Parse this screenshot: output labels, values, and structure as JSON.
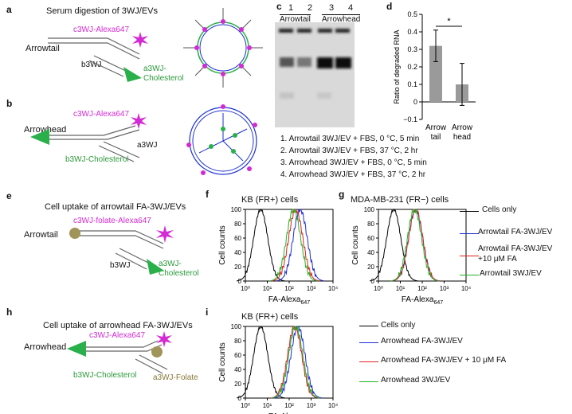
{
  "panels": {
    "a": {
      "label": "a",
      "title": "Serum digestion of 3WJ/EVs",
      "name": "Arrowtail",
      "top_strand": "c3WJ-Alexa647",
      "b_strand": "b3WJ",
      "a_strand": "a3WJ-",
      "a_suffix": "Cholesterol"
    },
    "b": {
      "label": "b",
      "name": "Arrowhead",
      "top_strand": "c3WJ-Alexa647",
      "b_strand": "b3WJ-Cholesterol",
      "a_strand": "a3WJ"
    },
    "c": {
      "label": "c",
      "lanes": [
        "1",
        "2",
        "3",
        "4"
      ],
      "group1": "Arrowtail",
      "group2": "Arrowhead",
      "legend": [
        "1. Arrowtail 3WJ/EV + FBS, 0 °C, 5 min",
        "2. Arrowtail 3WJ/EV + FBS, 37 °C, 2 hr",
        "3. Arrowhead 3WJ/EV + FBS, 0 °C, 5 min",
        "4. Arrowhead 3WJ/EV + FBS, 37 °C, 2 hr"
      ]
    },
    "d": {
      "label": "d",
      "star": "*"
    },
    "e": {
      "label": "e",
      "title": "Cell uptake of arrowtail FA-3WJ/EVs",
      "name": "Arrowtail",
      "top_strand": "c3WJ-folate-Alexa647",
      "b_strand": "b3WJ",
      "a_strand": "a3WJ-",
      "a_suffix": "Cholesterol"
    },
    "f": {
      "label": "f",
      "title": "KB (FR+) cells"
    },
    "g": {
      "label": "g",
      "title": "MDA-MB-231 (FR−) cells"
    },
    "h": {
      "label": "h",
      "title": "Cell uptake of arrowhead FA-3WJ/EVs",
      "name": "Arrowhead",
      "top_strand": "c3WJ-Alexa647",
      "b_strand": "b3WJ-Cholesterol",
      "a_strand": "a3WJ-Folate"
    },
    "i": {
      "label": "i",
      "title": "KB (FR+) cells"
    }
  },
  "legend_fg": [
    "Cells only",
    "Arrowtail FA-3WJ/EV",
    "Arrowtail FA-3WJ/EV",
    "+10 μM FA",
    "Arrowtail 3WJ/EV"
  ],
  "legend_i": [
    "Cells only",
    "Arrowhead FA-3WJ/EV",
    "Arrowhead FA-3WJ/EV + 10 μM FA",
    "Arrowhead 3WJ/EV"
  ],
  "flow_axes": {
    "ylabel": "Cell counts",
    "xlabel": "FA-Alexa647",
    "yticks": [
      "0",
      "20",
      "40",
      "60",
      "80",
      "100"
    ],
    "xticks": [
      "10⁰",
      "10¹",
      "10²",
      "10³",
      "10⁴"
    ]
  },
  "colors": {
    "black": "#000000",
    "blue": "#1a2fd0",
    "red": "#e02020",
    "green": "#22b222",
    "magenta": "#d42ad4",
    "cholesterol": "#2ab04a",
    "folate": "#a09458"
  },
  "chart_data": [
    {
      "panel": "d",
      "type": "bar",
      "categories": [
        "Arrow tail",
        "Arrow head"
      ],
      "values": [
        0.32,
        0.1
      ],
      "errors": [
        0.09,
        0.12
      ],
      "ylabel": "Ratio of degraded RNA",
      "ylim": [
        -0.1,
        0.5
      ],
      "yticks": [
        "−0.1",
        "0",
        "0.1",
        "0.2",
        "0.3",
        "0.4",
        "0.5"
      ]
    },
    {
      "panel": "f",
      "type": "histogram",
      "series": [
        {
          "name": "Cells only",
          "mode": 0.7
        },
        {
          "name": "Arrowtail FA-3WJ/EV",
          "mode": 2.5
        },
        {
          "name": "Arrowtail FA-3WJ/EV +10 μM FA",
          "mode": 2.3
        },
        {
          "name": "Arrowtail 3WJ/EV",
          "mode": 2.2
        }
      ]
    },
    {
      "panel": "g",
      "type": "histogram",
      "series": [
        {
          "name": "Cells only",
          "mode": 0.7
        },
        {
          "name": "Arrowtail FA-3WJ/EV",
          "mode": 1.7
        },
        {
          "name": "Arrowtail FA-3WJ/EV +10 μM FA",
          "mode": 1.7
        },
        {
          "name": "Arrowtail 3WJ/EV",
          "mode": 1.65
        }
      ]
    },
    {
      "panel": "i",
      "type": "histogram",
      "series": [
        {
          "name": "Cells only",
          "mode": 0.7
        },
        {
          "name": "Arrowhead FA-3WJ/EV",
          "mode": 2.4
        },
        {
          "name": "Arrowhead FA-3WJ/EV + 10 μM FA",
          "mode": 2.25
        },
        {
          "name": "Arrowhead 3WJ/EV",
          "mode": 2.3
        }
      ]
    }
  ]
}
